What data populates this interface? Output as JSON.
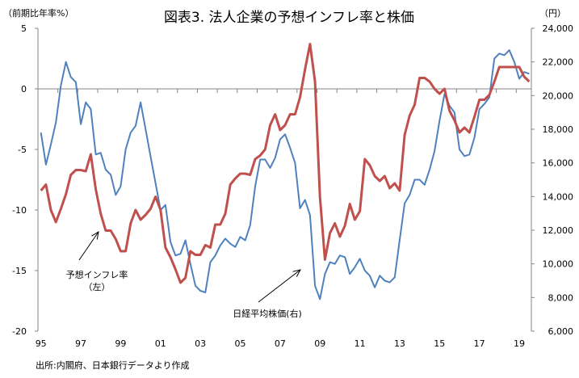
{
  "chart_data": {
    "type": "line",
    "title": "図表3. 法人企業の予想インフレ率と株価",
    "ylabel_left": "（前期比年率%）",
    "ylabel_right": "（円）",
    "source": "出所:内閣府、日本銀行データより作成",
    "x_start_year": 1995,
    "x_step_years": 0.25,
    "x_tick_labels": [
      "95",
      "97",
      "99",
      "01",
      "03",
      "05",
      "07",
      "09",
      "11",
      "13",
      "15",
      "17",
      "19"
    ],
    "ylim_left": [
      -20,
      5
    ],
    "yticks_left": [
      5,
      0,
      -5,
      -10,
      -15,
      -20
    ],
    "ylim_right": [
      6000,
      24000
    ],
    "yticks_right": [
      "24,000",
      "22,000",
      "20,000",
      "18,000",
      "16,000",
      "14,000",
      "12,000",
      "10,000",
      "8,000",
      "6,000"
    ],
    "series": [
      {
        "name": "予想インフレ率（左）",
        "axis": "left",
        "color": "#c0504d",
        "values": [
          -8.4,
          -7.9,
          -10.0,
          -11.0,
          -9.9,
          -8.7,
          -7.1,
          -6.7,
          -6.7,
          -6.8,
          -5.4,
          -8.3,
          -10.3,
          -11.7,
          -11.7,
          -12.4,
          -13.4,
          -13.4,
          -11.1,
          -10.0,
          -10.8,
          -10.4,
          -9.9,
          -8.9,
          -10.0,
          -13.1,
          -13.9,
          -14.9,
          -16.0,
          -15.6,
          -13.4,
          -13.7,
          -13.7,
          -12.9,
          -13.1,
          -11.2,
          -11.2,
          -10.3,
          -7.9,
          -7.4,
          -7.0,
          -7.0,
          -7.1,
          -5.8,
          -5.5,
          -5.0,
          -3.0,
          -2.1,
          -3.4,
          -3.0,
          -2.1,
          -2.1,
          -0.7,
          1.6,
          3.7,
          0.6,
          -8.9,
          -14.1,
          -11.9,
          -11.1,
          -12.2,
          -11.3,
          -9.5,
          -10.8,
          -10.1,
          -5.8,
          -6.3,
          -7.2,
          -7.6,
          -7.2,
          -8.2,
          -7.8,
          -8.4,
          -3.8,
          -2.2,
          -1.3,
          0.9,
          0.9,
          0.6,
          0.0,
          -0.4,
          0.0,
          -1.8,
          -2.6,
          -3.6,
          -3.2,
          -3.6,
          -2.3,
          -0.9,
          -0.9,
          -0.5,
          0.6,
          1.8,
          1.8,
          1.8,
          1.8,
          1.8,
          1.0,
          0.6
        ]
      },
      {
        "name": "日経平均株価（右）",
        "axis": "right",
        "color": "#4f81bd",
        "values": [
          17800,
          15900,
          17100,
          18400,
          20600,
          22000,
          21100,
          20800,
          18300,
          19600,
          19200,
          16500,
          16600,
          15600,
          15300,
          14100,
          14600,
          16800,
          17800,
          18200,
          19600,
          18000,
          16400,
          14800,
          13200,
          13500,
          11300,
          10500,
          10600,
          11400,
          10000,
          8700,
          8400,
          8300,
          10100,
          10500,
          11100,
          11500,
          11200,
          11000,
          11600,
          11400,
          12300,
          14600,
          16200,
          16200,
          15700,
          16300,
          17400,
          17700,
          16900,
          16000,
          13300,
          13800,
          12900,
          8700,
          7900,
          9400,
          10100,
          10000,
          10500,
          10400,
          9400,
          9800,
          10300,
          9600,
          9300,
          8600,
          9300,
          9000,
          8900,
          9200,
          11400,
          13600,
          14100,
          15000,
          15000,
          14700,
          15600,
          16700,
          18500,
          20100,
          19400,
          19000,
          16800,
          16400,
          16500,
          17500,
          19200,
          19500,
          19900,
          22200,
          22500,
          22400,
          22700,
          22000,
          21000,
          21400,
          21300
        ]
      }
    ],
    "annotations": [
      {
        "line1": "予想インフレ率",
        "line2": "（左）"
      },
      {
        "line1": "日経平均株価(右)"
      }
    ]
  }
}
